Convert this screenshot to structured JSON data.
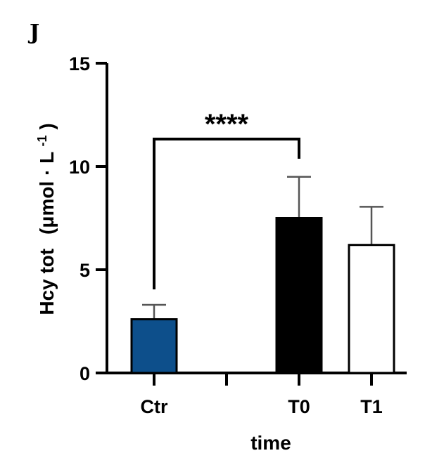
{
  "panel_label": "J",
  "chart_data": {
    "type": "bar",
    "categories": [
      "Ctr",
      "",
      "T0",
      "T1"
    ],
    "values": [
      2.6,
      null,
      7.5,
      6.2
    ],
    "error": [
      0.7,
      null,
      2.0,
      1.85
    ],
    "bar_colors": [
      "#0d4f8b",
      null,
      "#000000",
      "#ffffff"
    ],
    "ylim": [
      0,
      15
    ],
    "yticks": [
      0,
      5,
      10,
      15
    ],
    "xlabel": "time",
    "ylabel": {
      "main": "Hcy tot",
      "unit_open": "(μmol · L",
      "unit_sup": "-1",
      "unit_close": ")"
    },
    "significance": {
      "from": "Ctr",
      "to": "T0",
      "label": "****"
    }
  }
}
